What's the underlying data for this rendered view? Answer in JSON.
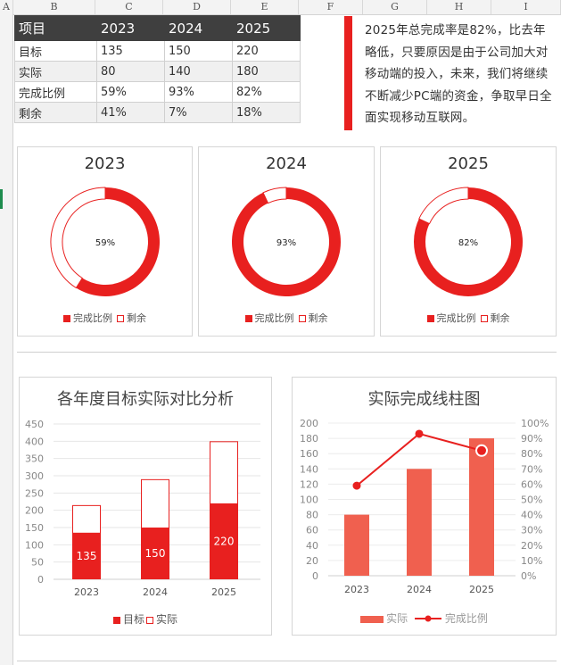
{
  "sheet": {
    "columns": [
      "A",
      "B",
      "C",
      "D",
      "E",
      "F",
      "G",
      "H",
      "I"
    ]
  },
  "table": {
    "header": [
      "项目",
      "2023",
      "2024",
      "2025"
    ],
    "rows": [
      [
        "目标",
        "135",
        "150",
        "220"
      ],
      [
        "实际",
        "80",
        "140",
        "180"
      ],
      [
        "完成比例",
        "59%",
        "93%",
        "82%"
      ],
      [
        "剩余",
        "41%",
        "7%",
        "18%"
      ]
    ]
  },
  "note": "2025年总完成率是82%，比去年略低，只要原因是由于公司加大对移动端的投入，未来，我们将继续不断减少PC端的资金，争取早日全面实现移动互联网。",
  "colors": {
    "red": "#e8201f",
    "salmon": "#f0604f",
    "dark": "#3f3f3f"
  },
  "donuts": [
    {
      "year": "2023",
      "completed": 59,
      "remaining": 41,
      "label": "59%",
      "legend_completed": "完成比例",
      "legend_remaining": "剩余"
    },
    {
      "year": "2024",
      "completed": 93,
      "remaining": 7,
      "label": "93%",
      "legend_completed": "完成比例",
      "legend_remaining": "剩余"
    },
    {
      "year": "2025",
      "completed": 82,
      "remaining": 18,
      "label": "82%",
      "legend_completed": "完成比例",
      "legend_remaining": "剩余"
    }
  ],
  "chart_data": [
    {
      "type": "bar",
      "stacked": true,
      "title": "各年度目标实际对比分析",
      "categories": [
        "2023",
        "2024",
        "2025"
      ],
      "series": [
        {
          "name": "目标",
          "values": [
            135,
            150,
            220
          ],
          "labels": [
            "135",
            "150",
            "220"
          ]
        },
        {
          "name": "实际",
          "values": [
            80,
            140,
            180
          ]
        }
      ],
      "ylim": [
        0,
        450
      ],
      "yticks": [
        "0",
        "50",
        "100",
        "150",
        "200",
        "250",
        "300",
        "350",
        "400",
        "450"
      ],
      "legend": "bottom"
    },
    {
      "type": "bar",
      "combo": "bar+line",
      "title": "实际完成线柱图",
      "categories": [
        "2023",
        "2024",
        "2025"
      ],
      "series": [
        {
          "name": "实际",
          "values": [
            80,
            140,
            180
          ],
          "axis": "left"
        },
        {
          "name": "完成比例",
          "values": [
            0.59,
            0.93,
            0.82
          ],
          "axis": "right"
        }
      ],
      "ylim": [
        0,
        200
      ],
      "yticks": [
        "0",
        "20",
        "40",
        "60",
        "80",
        "100",
        "120",
        "140",
        "160",
        "180",
        "200"
      ],
      "y2lim": [
        0,
        1
      ],
      "y2ticks": [
        "0%",
        "10%",
        "20%",
        "30%",
        "40%",
        "50%",
        "60%",
        "70%",
        "80%",
        "90%",
        "100%"
      ],
      "legend": "bottom"
    }
  ]
}
